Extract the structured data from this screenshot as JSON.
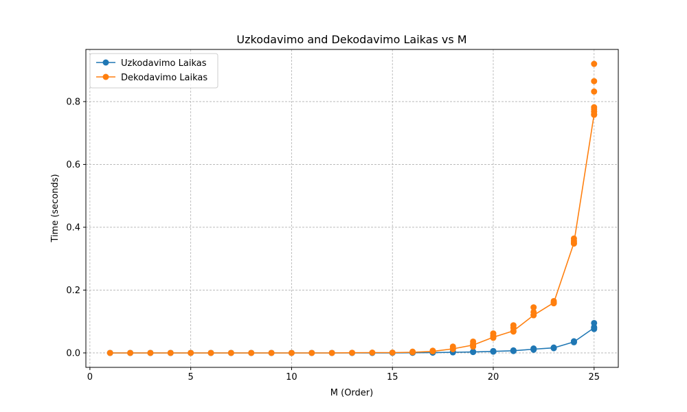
{
  "chart_data": {
    "type": "line",
    "title": "Uzkodavimo and Dekodavimo Laikas vs M",
    "xlabel": "M (Order)",
    "ylabel": "Time (seconds)",
    "xlim": [
      -0.2,
      26.2
    ],
    "ylim": [
      -0.046,
      0.966
    ],
    "xticks": [
      0,
      5,
      10,
      15,
      20,
      25
    ],
    "yticks": [
      0.0,
      0.2,
      0.4,
      0.6,
      0.8
    ],
    "ytick_labels": [
      "0.0",
      "0.2",
      "0.4",
      "0.6",
      "0.8"
    ],
    "grid": true,
    "legend_position": "upper left",
    "series": [
      {
        "name": "Uzkodavimo Laikas",
        "color": "#1f77b4",
        "x": [
          1,
          2,
          3,
          4,
          5,
          6,
          7,
          8,
          9,
          10,
          11,
          12,
          13,
          14,
          15,
          16,
          17,
          18,
          19,
          20,
          21,
          22,
          23,
          24,
          25
        ],
        "y": [
          0,
          0,
          0,
          0,
          0,
          0,
          0,
          0,
          0,
          0,
          0,
          0,
          0,
          0,
          0.0002,
          0.0005,
          0.001,
          0.002,
          0.003,
          0.005,
          0.007,
          0.012,
          0.016,
          0.035,
          0.08
        ],
        "scatter_x": [
          15,
          16,
          16,
          17,
          17,
          18,
          18,
          19,
          19,
          20,
          20,
          21,
          21,
          22,
          22,
          23,
          23,
          24,
          24,
          25,
          25,
          25
        ],
        "scatter_y": [
          0.0005,
          0.0005,
          0.001,
          0.001,
          0.002,
          0.002,
          0.003,
          0.003,
          0.004,
          0.004,
          0.006,
          0.006,
          0.008,
          0.01,
          0.014,
          0.015,
          0.017,
          0.034,
          0.037,
          0.076,
          0.082,
          0.095
        ]
      },
      {
        "name": "Dekodavimo Laikas",
        "color": "#ff7f0e",
        "x": [
          1,
          2,
          3,
          4,
          5,
          6,
          7,
          8,
          9,
          10,
          11,
          12,
          13,
          14,
          15,
          16,
          17,
          18,
          19,
          20,
          21,
          22,
          23,
          24,
          25
        ],
        "y": [
          0,
          0,
          0,
          0,
          0,
          0,
          0,
          0,
          0,
          0,
          0,
          0,
          0.0005,
          0.001,
          0.001,
          0.002,
          0.005,
          0.013,
          0.025,
          0.05,
          0.07,
          0.12,
          0.16,
          0.35,
          0.76
        ],
        "scatter_x": [
          16,
          17,
          18,
          18,
          19,
          19,
          19,
          20,
          20,
          20,
          21,
          21,
          21,
          22,
          22,
          22,
          23,
          23,
          24,
          24,
          24,
          25,
          25,
          25,
          25,
          25,
          25,
          25
        ],
        "scatter_y": [
          0.004,
          0.007,
          0.012,
          0.02,
          0.02,
          0.028,
          0.036,
          0.048,
          0.055,
          0.062,
          0.068,
          0.08,
          0.088,
          0.12,
          0.13,
          0.145,
          0.158,
          0.165,
          0.348,
          0.356,
          0.364,
          0.758,
          0.768,
          0.776,
          0.782,
          0.832,
          0.865,
          0.92
        ]
      }
    ]
  }
}
